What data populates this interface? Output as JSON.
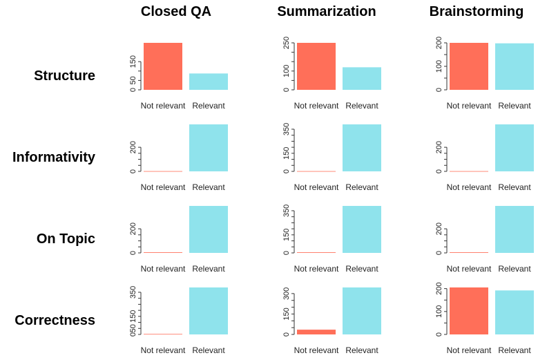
{
  "column_titles": [
    "Closed QA",
    "Summarization",
    "Brainstorming"
  ],
  "row_titles": [
    "Structure",
    "Informativity",
    "On Topic",
    "Correctness"
  ],
  "colors": {
    "not_relevant": "#FF6F59",
    "relevant": "#8FE3EC",
    "axis": "#333333"
  },
  "chart_data": [
    {
      "type": "bar",
      "row": "Structure",
      "column": "Closed QA",
      "categories": [
        "Not relevant",
        "Relevant"
      ],
      "values": [
        250,
        87
      ],
      "yticks": [
        0,
        50,
        150
      ],
      "ylim": [
        0,
        250
      ]
    },
    {
      "type": "bar",
      "row": "Structure",
      "column": "Summarization",
      "categories": [
        "Not relevant",
        "Relevant"
      ],
      "values": [
        250,
        120
      ],
      "yticks": [
        0,
        100,
        250
      ],
      "ylim": [
        0,
        250
      ]
    },
    {
      "type": "bar",
      "row": "Structure",
      "column": "Brainstorming",
      "categories": [
        "Not relevant",
        "Relevant"
      ],
      "values": [
        200,
        198
      ],
      "yticks": [
        0,
        100,
        200
      ],
      "ylim": [
        0,
        200
      ]
    },
    {
      "type": "bar",
      "row": "Informativity",
      "column": "Closed QA",
      "categories": [
        "Not relevant",
        "Relevant"
      ],
      "values": [
        2,
        390
      ],
      "yticks": [
        0,
        200
      ],
      "ylim": [
        0,
        390
      ]
    },
    {
      "type": "bar",
      "row": "Informativity",
      "column": "Summarization",
      "categories": [
        "Not relevant",
        "Relevant"
      ],
      "values": [
        2,
        390
      ],
      "yticks": [
        0,
        150,
        350
      ],
      "ylim": [
        0,
        390
      ]
    },
    {
      "type": "bar",
      "row": "Informativity",
      "column": "Brainstorming",
      "categories": [
        "Not relevant",
        "Relevant"
      ],
      "values": [
        2,
        390
      ],
      "yticks": [
        0,
        200
      ],
      "ylim": [
        0,
        390
      ]
    },
    {
      "type": "bar",
      "row": "On Topic",
      "column": "Closed QA",
      "categories": [
        "Not relevant",
        "Relevant"
      ],
      "values": [
        5,
        390
      ],
      "yticks": [
        0,
        200
      ],
      "ylim": [
        0,
        390
      ]
    },
    {
      "type": "bar",
      "row": "On Topic",
      "column": "Summarization",
      "categories": [
        "Not relevant",
        "Relevant"
      ],
      "values": [
        5,
        390
      ],
      "yticks": [
        0,
        150,
        350
      ],
      "ylim": [
        0,
        390
      ]
    },
    {
      "type": "bar",
      "row": "On Topic",
      "column": "Brainstorming",
      "categories": [
        "Not relevant",
        "Relevant"
      ],
      "values": [
        5,
        390
      ],
      "yticks": [
        0,
        200
      ],
      "ylim": [
        0,
        390
      ]
    },
    {
      "type": "bar",
      "row": "Correctness",
      "column": "Closed QA",
      "categories": [
        "Not relevant",
        "Relevant"
      ],
      "values": [
        4,
        390
      ],
      "yticks": [
        0,
        50,
        150,
        350
      ],
      "ylim": [
        0,
        390
      ]
    },
    {
      "type": "bar",
      "row": "Correctness",
      "column": "Summarization",
      "categories": [
        "Not relevant",
        "Relevant"
      ],
      "values": [
        35,
        345
      ],
      "yticks": [
        0,
        150,
        300
      ],
      "ylim": [
        0,
        345
      ]
    },
    {
      "type": "bar",
      "row": "Correctness",
      "column": "Brainstorming",
      "categories": [
        "Not relevant",
        "Relevant"
      ],
      "values": [
        205,
        192
      ],
      "yticks": [
        0,
        100,
        200
      ],
      "ylim": [
        0,
        205
      ]
    }
  ]
}
